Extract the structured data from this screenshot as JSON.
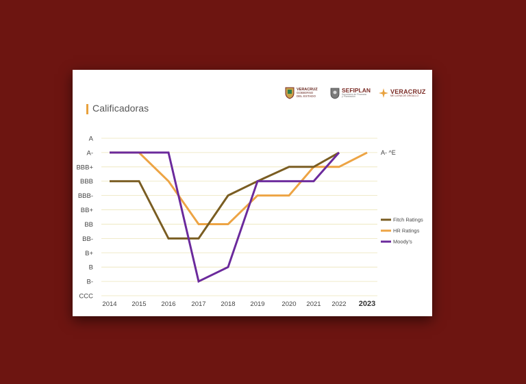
{
  "slide": {
    "title": "Calificadoras",
    "logos": [
      {
        "name": "veracruz-gobierno",
        "line1": "VERACRUZ",
        "line2": "GOBIERNO",
        "line3": "DEL ESTADO"
      },
      {
        "name": "sefiplan",
        "line1": "SEFIPLAN",
        "line2": "Secretaría de Finanzas",
        "line3": "y Planeación"
      },
      {
        "name": "veracruz-orgullo",
        "line1": "VERACRUZ",
        "line2": "ME LLENA DE ORGULLO"
      }
    ],
    "colors": {
      "background": "#6d1511",
      "fitch": "#7a5d22",
      "hr": "#eda444",
      "moodys": "#6b2a9c",
      "grid": "#ece4b8"
    }
  },
  "chart_data": {
    "type": "line",
    "title": "Calificadoras",
    "y_categories": [
      "CCC",
      "B-",
      "B",
      "B+",
      "BB-",
      "BB",
      "BB+",
      "BBB-",
      "BBB",
      "BBB+",
      "A-",
      "A"
    ],
    "x_ticks": [
      "2014",
      "2015",
      "2016",
      "2017",
      "2018",
      "2019",
      "2020",
      "2021",
      "2022",
      "2023"
    ],
    "annotation": "A- ^E",
    "legend_position": "right",
    "grid": true,
    "series": [
      {
        "name": "Fitch Ratings",
        "color": "#7a5d22",
        "points": [
          [
            2014,
            "BBB"
          ],
          [
            2015,
            "BBB"
          ],
          [
            2016,
            "BB-"
          ],
          [
            2017,
            "BB-"
          ],
          [
            2018,
            "BBB-"
          ],
          [
            2019,
            "BBB"
          ],
          [
            2020,
            "BBB+"
          ],
          [
            2021,
            "BBB+"
          ],
          [
            2022,
            "A-"
          ]
        ]
      },
      {
        "name": "HR Ratings",
        "color": "#eda444",
        "points": [
          [
            2014,
            "A-"
          ],
          [
            2015,
            "A-"
          ],
          [
            2016,
            "BBB"
          ],
          [
            2017,
            "BB"
          ],
          [
            2018,
            "BB"
          ],
          [
            2019,
            "BBB-"
          ],
          [
            2020,
            "BBB-"
          ],
          [
            2021,
            "BBB+"
          ],
          [
            2022,
            "BBB+"
          ],
          [
            2023,
            "A-"
          ]
        ]
      },
      {
        "name": "Moody's",
        "color": "#6b2a9c",
        "points": [
          [
            2014,
            "A-"
          ],
          [
            2015,
            "A-"
          ],
          [
            2016,
            "A-"
          ],
          [
            2017,
            "B-"
          ],
          [
            2018,
            "B"
          ],
          [
            2019,
            "BBB"
          ],
          [
            2020,
            "BBB"
          ],
          [
            2021,
            "BBB"
          ],
          [
            2022,
            "A-"
          ]
        ]
      }
    ]
  }
}
